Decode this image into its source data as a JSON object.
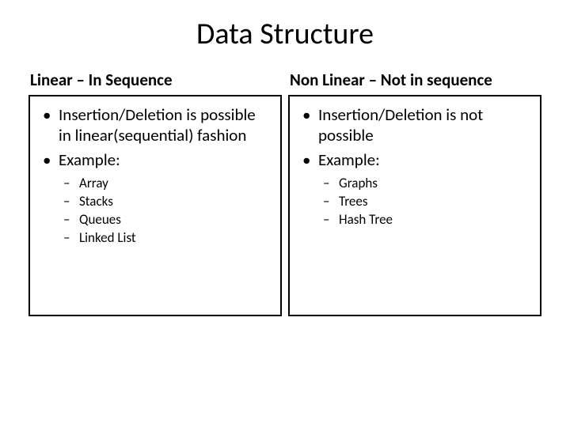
{
  "title": "Data Structure",
  "left": {
    "heading": "Linear – In Sequence",
    "bullets": [
      "Insertion/Deletion is possible in linear(sequential) fashion",
      "Example:"
    ],
    "subbullets": [
      "Array",
      "Stacks",
      "Queues",
      "Linked List"
    ]
  },
  "right": {
    "heading": "Non Linear – Not in sequence",
    "bullets": [
      "Insertion/Deletion is not possible",
      "Example:"
    ],
    "subbullets": [
      "Graphs",
      "Trees",
      "Hash Tree"
    ]
  },
  "style": {
    "background_color": "#ffffff",
    "text_color": "#000000",
    "border_color": "#000000",
    "title_fontsize": 38,
    "heading_fontsize": 21,
    "bullet_fontsize": 21,
    "subbullet_fontsize": 17,
    "font_family": "Calibri"
  }
}
